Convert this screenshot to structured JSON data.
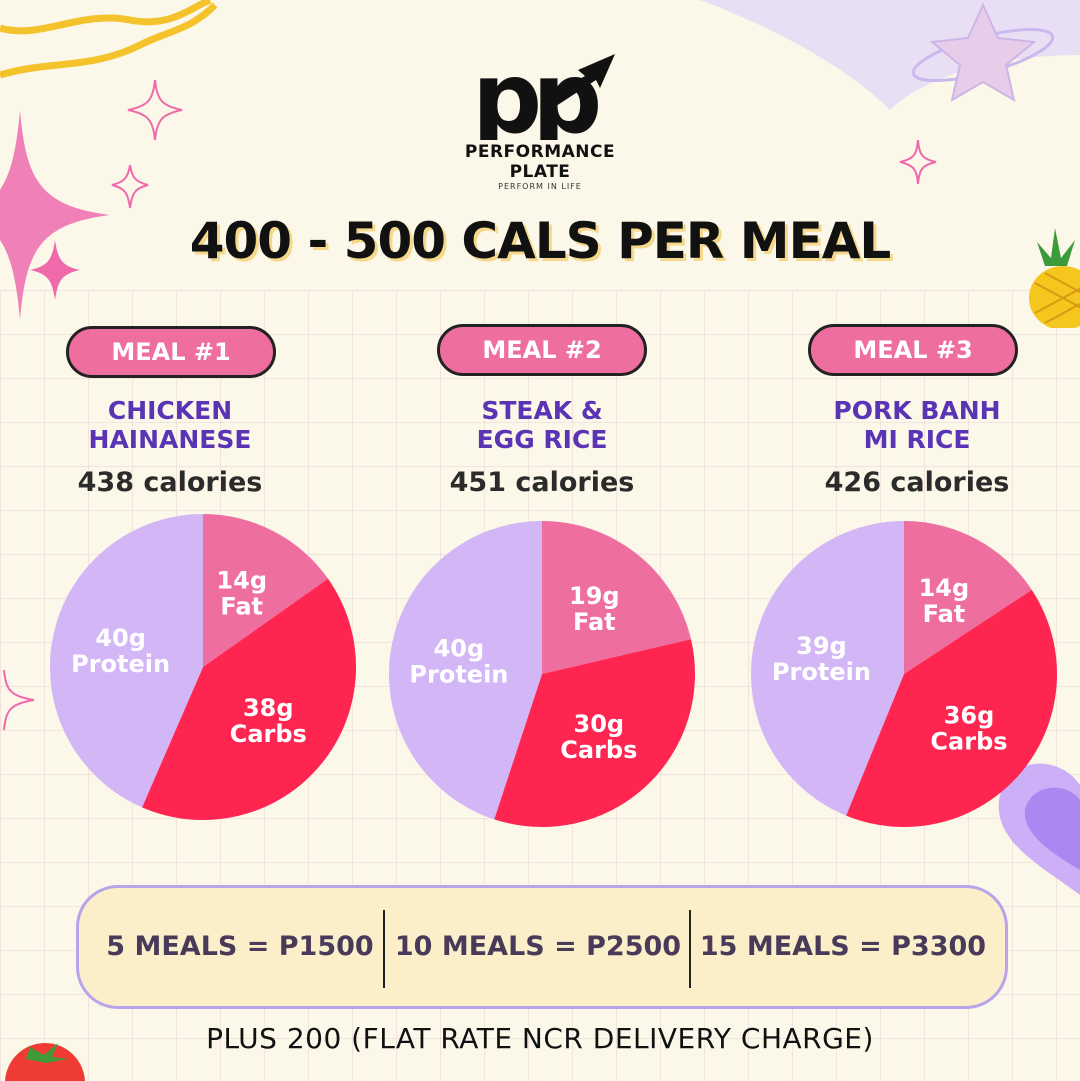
{
  "brand": {
    "name": "PERFORMANCE PLATE",
    "tagline": "PERFORM IN LIFE",
    "monogram": "pp"
  },
  "headline": "400 - 500 CALS PER MEAL",
  "colors": {
    "fat": "#ee6f9f",
    "carbs": "#fe2551",
    "protein": "#d2b6f5",
    "badge": "#ee6f9f",
    "meal_name": "#5a34b5"
  },
  "meals": [
    {
      "badge": "MEAL #1",
      "name_line1": "CHICKEN",
      "name_line2": "HAINANESE",
      "calories": "438 calories"
    },
    {
      "badge": "MEAL #2",
      "name_line1": "STEAK &",
      "name_line2": "EGG RICE",
      "calories": "451 calories"
    },
    {
      "badge": "MEAL #3",
      "name_line1": "PORK BANH",
      "name_line2": "MI RICE",
      "calories": "426 calories"
    }
  ],
  "chart_data": [
    {
      "type": "pie",
      "title": "CHICKEN HAINANESE",
      "slices": [
        {
          "label": "Fat",
          "value": 14,
          "display": "14g"
        },
        {
          "label": "Carbs",
          "value": 38,
          "display": "38g"
        },
        {
          "label": "Protein",
          "value": 40,
          "display": "40g"
        }
      ]
    },
    {
      "type": "pie",
      "title": "STEAK & EGG RICE",
      "slices": [
        {
          "label": "Fat",
          "value": 19,
          "display": "19g"
        },
        {
          "label": "Carbs",
          "value": 30,
          "display": "30g"
        },
        {
          "label": "Protein",
          "value": 40,
          "display": "40g"
        }
      ]
    },
    {
      "type": "pie",
      "title": "PORK BANH MI RICE",
      "slices": [
        {
          "label": "Fat",
          "value": 14,
          "display": "14g"
        },
        {
          "label": "Carbs",
          "value": 36,
          "display": "36g"
        },
        {
          "label": "Protein",
          "value": 39,
          "display": "39g"
        }
      ]
    }
  ],
  "pricing": [
    {
      "label": "5 MEALS = P1500"
    },
    {
      "label": "10 MEALS = P2500"
    },
    {
      "label": "15 MEALS = P3300"
    }
  ],
  "footnote": "PLUS 200 (FLAT RATE NCR DELIVERY CHARGE)"
}
